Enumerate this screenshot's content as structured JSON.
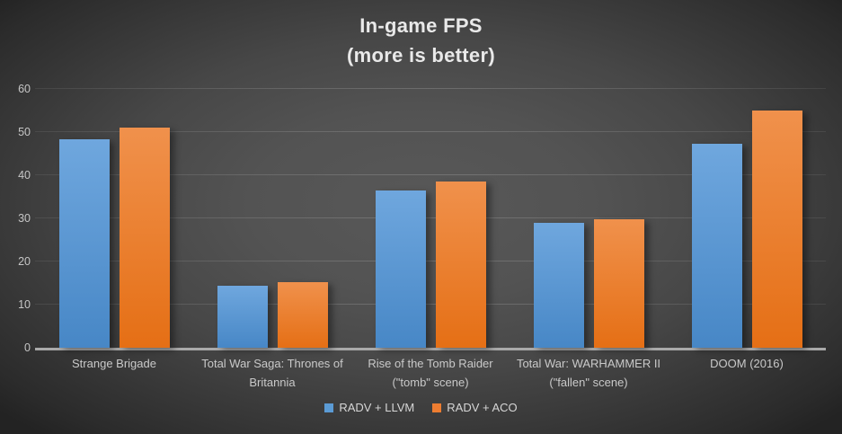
{
  "title": {
    "line1": "In-game FPS",
    "line2": "(more is better)"
  },
  "chart_data": {
    "type": "bar",
    "title": "In-game FPS (more is better)",
    "categories": [
      "Strange Brigade",
      "Total War Saga: Thrones of Britannia",
      "Rise of the Tomb Raider (\"tomb\" scene)",
      "Total War: WARHAMMER II (\"fallen\" scene)",
      "DOOM (2016)"
    ],
    "series": [
      {
        "name": "RADV + LLVM",
        "color": "#5b9bd5",
        "gradient_top": "#6fa7de",
        "gradient_bottom": "#4787c6",
        "values": [
          48.3,
          14.4,
          36.4,
          29.0,
          47.3
        ]
      },
      {
        "name": "RADV + ACO",
        "color": "#ed7d31",
        "gradient_top": "#f0914c",
        "gradient_bottom": "#e56f15",
        "values": [
          51.0,
          15.3,
          38.5,
          29.8,
          54.9
        ]
      }
    ],
    "ylim": [
      0,
      60
    ],
    "yticks": [
      0,
      10,
      20,
      30,
      40,
      50,
      60
    ],
    "grid": true,
    "legend_position": "bottom",
    "background": "dark-radial-gray"
  }
}
